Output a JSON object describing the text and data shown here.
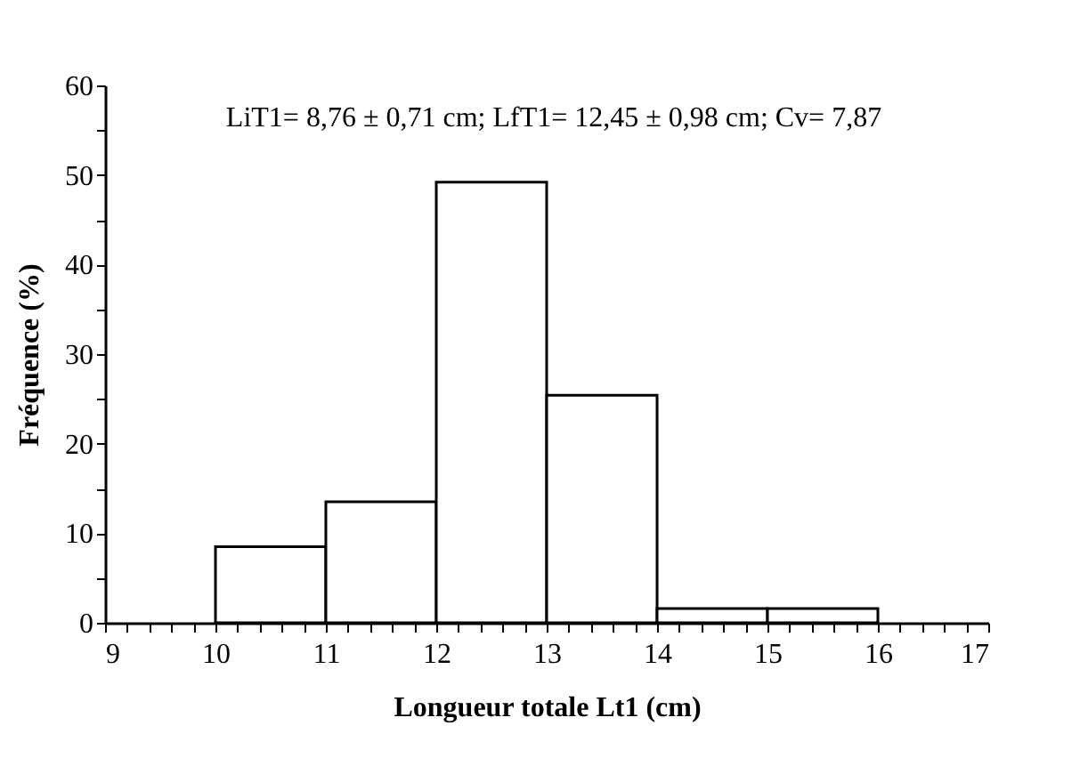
{
  "chart_data": {
    "type": "histogram",
    "xlabel": "Longueur totale Lt1 (cm)",
    "ylabel": "Fréquence (%)",
    "annotations": [
      "LiT1= 8,76 ± 0,71 cm; LfT1= 12,45 ± 0,98 cm; Cv= 7,87"
    ],
    "bins": [
      10,
      11,
      12,
      13,
      14,
      15,
      16
    ],
    "values": [
      8.5,
      13.5,
      49.2,
      25.4,
      1.6,
      1.6
    ],
    "color": "#ffffff",
    "xlim": [
      9,
      17
    ],
    "xticks": [
      9,
      {
        "value": 9.2,
        "label": null
      },
      {
        "value": 9.4,
        "label": null
      },
      {
        "value": 9.6,
        "label": null
      },
      {
        "value": 9.8,
        "label": null
      },
      10,
      {
        "value": 10.2,
        "label": null
      },
      {
        "value": 10.4,
        "label": null
      },
      {
        "value": 10.6,
        "label": null
      },
      {
        "value": 10.8,
        "label": null
      },
      11,
      {
        "value": 11.2,
        "label": null
      },
      {
        "value": 11.4,
        "label": null
      },
      {
        "value": 11.6,
        "label": null
      },
      {
        "value": 11.8,
        "label": null
      },
      12,
      {
        "value": 12.2,
        "label": null
      },
      {
        "value": 12.4,
        "label": null
      },
      {
        "value": 12.6,
        "label": null
      },
      {
        "value": 12.8,
        "label": null
      },
      13,
      {
        "value": 13.2,
        "label": null
      },
      {
        "value": 13.4,
        "label": null
      },
      {
        "value": 13.6,
        "label": null
      },
      {
        "value": 13.8,
        "label": null
      },
      14,
      {
        "value": 14.2,
        "label": null
      },
      {
        "value": 14.4,
        "label": null
      },
      {
        "value": 14.6,
        "label": null
      },
      {
        "value": 14.8,
        "label": null
      },
      15,
      {
        "value": 15.2,
        "label": null
      },
      {
        "value": 15.4,
        "label": null
      },
      {
        "value": 15.6,
        "label": null
      },
      {
        "value": 15.8,
        "label": null
      },
      16,
      {
        "value": 16.2,
        "label": null
      },
      {
        "value": 16.4,
        "label": null
      },
      {
        "value": 16.6,
        "label": null
      },
      {
        "value": 16.8,
        "label": null
      },
      17
    ],
    "ylim": [
      0,
      60
    ],
    "yticks": [
      0,
      {
        "value": 5,
        "label": null
      },
      10,
      {
        "value": 15,
        "label": null
      },
      20,
      {
        "value": 25,
        "label": null
      },
      30,
      {
        "value": 35,
        "label": null
      },
      40,
      {
        "value": 45,
        "label": null
      },
      50,
      {
        "value": 55,
        "label": null
      },
      60
    ]
  }
}
